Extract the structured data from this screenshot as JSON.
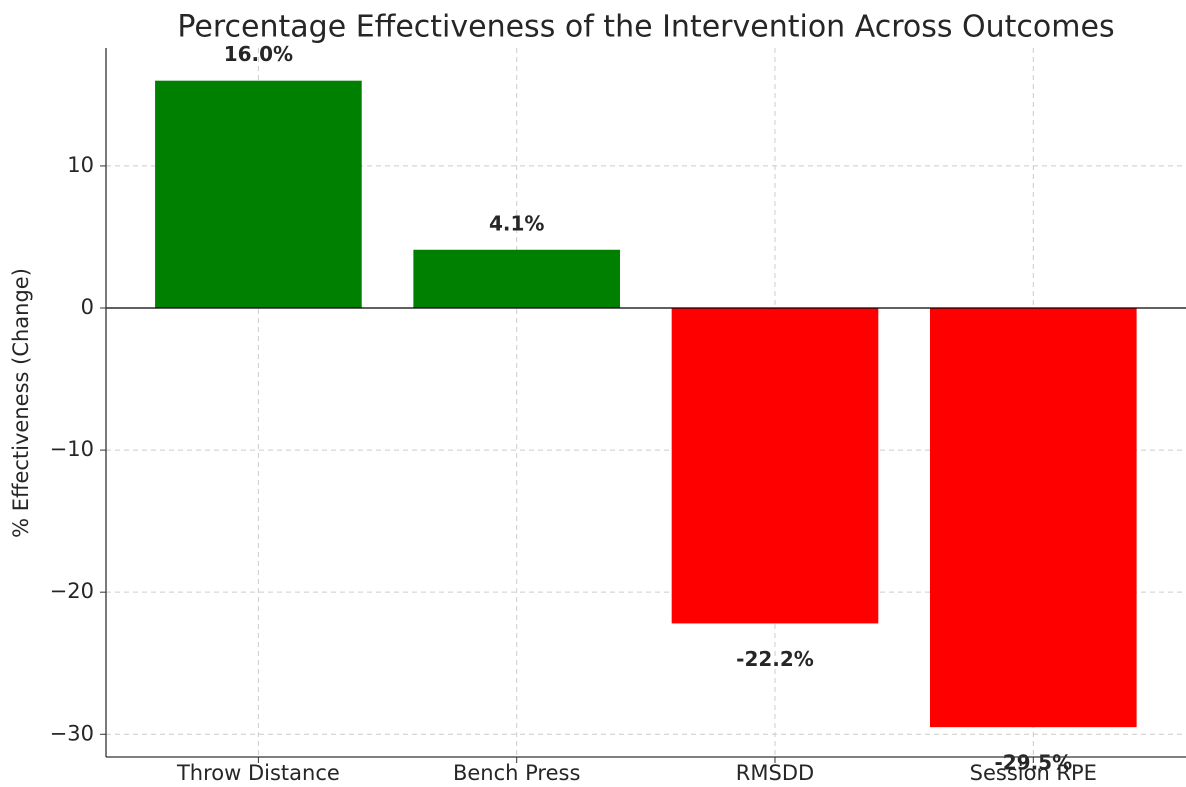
{
  "chart_data": {
    "type": "bar",
    "title": "Percentage Effectiveness of the Intervention Across Outcomes",
    "y_label": "% Effectiveness (Change)",
    "categories": [
      "Throw Distance",
      "Bench Press",
      "RMSDD",
      "Session RPE"
    ],
    "values": [
      16.0,
      4.1,
      -22.2,
      -29.5
    ],
    "value_labels": [
      "16.0%",
      "4.1%",
      "-22.2%",
      "-29.5%"
    ],
    "colors": [
      "#008000",
      "#008000",
      "#ff0000",
      "#ff0000"
    ],
    "ylim": [
      -31.6,
      18.3
    ],
    "yticks": [
      {
        "value": -30,
        "label": "−30"
      },
      {
        "value": -20,
        "label": "−20"
      },
      {
        "value": -10,
        "label": "−10"
      },
      0,
      10
    ],
    "grid": true
  }
}
